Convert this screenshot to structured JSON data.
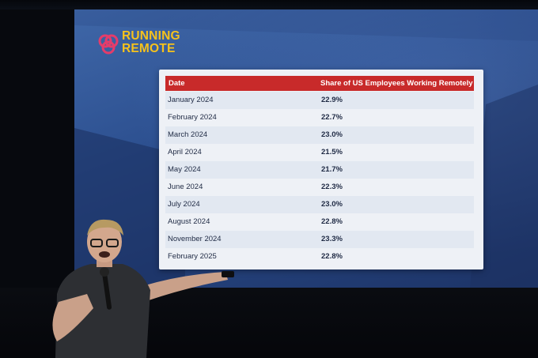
{
  "brand": {
    "line1": "RUNNING",
    "line2": "REMOTE",
    "logo_icon": "knot-logo-icon",
    "color": "#f6c21c"
  },
  "table": {
    "headers": [
      "Date",
      "Share of US Employees Working Remotely"
    ],
    "rows": [
      [
        "January 2024",
        "22.9%"
      ],
      [
        "February 2024",
        "22.7%"
      ],
      [
        "March 2024",
        "23.0%"
      ],
      [
        "April 2024",
        "21.5%"
      ],
      [
        "May 2024",
        "21.7%"
      ],
      [
        "June 2024",
        "22.3%"
      ],
      [
        "July 2024",
        "23.0%"
      ],
      [
        "August 2024",
        "22.8%"
      ],
      [
        "November 2024",
        "23.3%"
      ],
      [
        "February 2025",
        "22.8%"
      ]
    ],
    "header_color": "#c82a2a"
  }
}
